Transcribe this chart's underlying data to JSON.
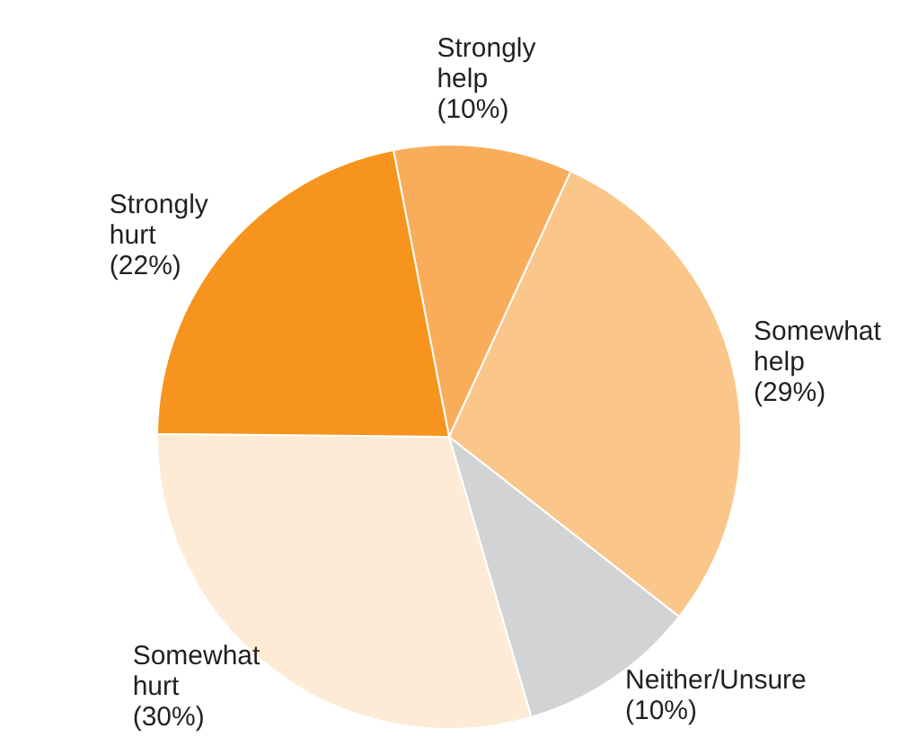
{
  "chart_data": {
    "type": "pie",
    "categories": [
      "Strongly help",
      "Somewhat help",
      "Neither/Unsure",
      "Somewhat hurt",
      "Strongly hurt"
    ],
    "values": [
      10,
      29,
      10,
      30,
      22
    ],
    "value_labels": [
      "(10%)",
      "(29%)",
      "(10%)",
      "(30%)",
      "(22%)"
    ],
    "colors": [
      "#f9ad5a",
      "#fbc68a",
      "#d1d3d4",
      "#fdebd6",
      "#f7941d"
    ],
    "legend": false
  }
}
